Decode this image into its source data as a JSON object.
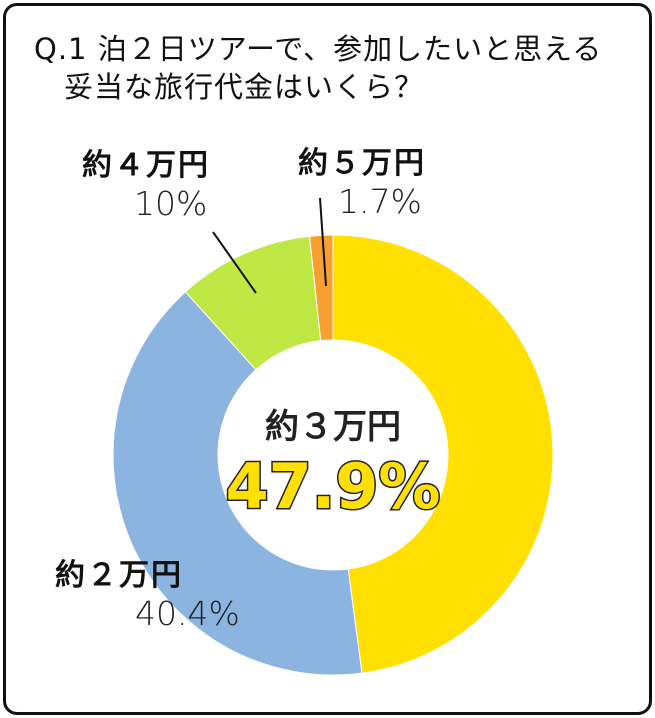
{
  "title_line1": "Q.1 泊２日ツアーで、参加したいと思える",
  "title_line2": "妥当な旅行代金はいくら？",
  "chart_data": {
    "type": "pie",
    "donut": true,
    "start": "top",
    "direction": "clockwise",
    "slices": [
      {
        "label": "約３万円",
        "value": 47.9,
        "display": "47.9%",
        "color": "#FFE000"
      },
      {
        "label": "約２万円",
        "value": 40.4,
        "display": "40.4%",
        "color": "#8BB4E0"
      },
      {
        "label": "約４万円",
        "value": 10,
        "display": "10%",
        "color": "#BFE845"
      },
      {
        "label": "約５万円",
        "value": 1.7,
        "display": "1.7%",
        "color": "#F7A030"
      }
    ]
  }
}
